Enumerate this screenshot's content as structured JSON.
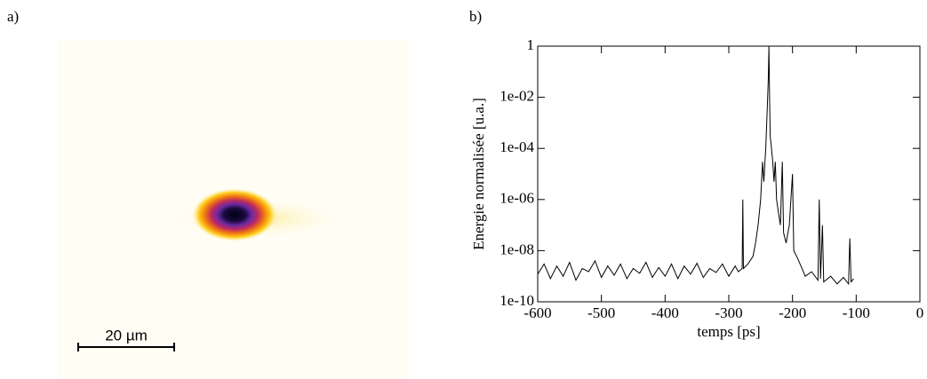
{
  "image_panel": {
    "label": "a)",
    "scale_bar": "20 µm"
  },
  "chart_data": {
    "type": "line",
    "panel_label": "b)",
    "x_label": "temps [ps]",
    "y_label": "Energie normalisée [u.a.]",
    "yscale": "log",
    "color": "#000000",
    "xlim": [
      -600,
      0
    ],
    "xticks": [
      -600,
      -500,
      -400,
      -300,
      -200,
      -100,
      0
    ],
    "ylim": [
      1e-10,
      1
    ],
    "yticks": [
      {
        "value": 1e-10,
        "label": "1e-10"
      },
      {
        "value": 1e-08,
        "label": "1e-08"
      },
      {
        "value": 1e-06,
        "label": "1e-06"
      },
      {
        "value": 0.0001,
        "label": "1e-04"
      },
      {
        "value": 0.01,
        "label": "1e-02"
      },
      1
    ],
    "x": [
      -600,
      -590,
      -580,
      -570,
      -560,
      -550,
      -540,
      -530,
      -520,
      -510,
      -500,
      -490,
      -480,
      -470,
      -460,
      -450,
      -440,
      -430,
      -420,
      -410,
      -400,
      -390,
      -380,
      -370,
      -360,
      -350,
      -340,
      -330,
      -320,
      -310,
      -300,
      -290,
      -285,
      -279,
      -278,
      -277,
      -270,
      -262,
      -258,
      -254,
      -250,
      -247,
      -245,
      -242,
      -240,
      -238,
      -237,
      -236,
      -235,
      -233,
      -231,
      -229,
      -227,
      -225,
      -222,
      -219,
      -216,
      -214,
      -210,
      -205,
      -200,
      -198,
      -192,
      -185,
      -180,
      -170,
      -160,
      -158,
      -156,
      -153,
      -151,
      -140,
      -130,
      -120,
      -112,
      -110,
      -108,
      -104
    ],
    "values": [
      1.2e-09,
      3e-09,
      8e-10,
      2.5e-09,
      1e-09,
      3.5e-09,
      7e-10,
      2e-09,
      1.5e-09,
      4e-09,
      9e-10,
      2.5e-09,
      1.1e-09,
      3e-09,
      8e-10,
      2e-09,
      1.3e-09,
      3.5e-09,
      9e-10,
      2.2e-09,
      1e-09,
      3e-09,
      8e-10,
      2.5e-09,
      1.2e-09,
      3.2e-09,
      9e-10,
      2e-09,
      1.4e-09,
      3e-09,
      1e-09,
      2.5e-09,
      1.5e-09,
      2e-09,
      1e-06,
      2e-09,
      3e-09,
      6e-09,
      2e-08,
      1e-07,
      1e-06,
      3e-05,
      5e-06,
      0.0001,
      0.002,
      0.05,
      1,
      0.01,
      0.0003,
      0.0001,
      3e-05,
      5e-06,
      3e-05,
      1e-06,
      3e-07,
      1e-07,
      3e-05,
      5e-08,
      2e-08,
      1e-07,
      1e-05,
      1e-08,
      5e-09,
      2e-09,
      1e-09,
      1.5e-09,
      7e-10,
      1e-06,
      8e-10,
      1e-07,
      6e-10,
      1e-09,
      5e-10,
      9e-10,
      5e-10,
      3e-08,
      6e-10,
      8e-10
    ]
  }
}
